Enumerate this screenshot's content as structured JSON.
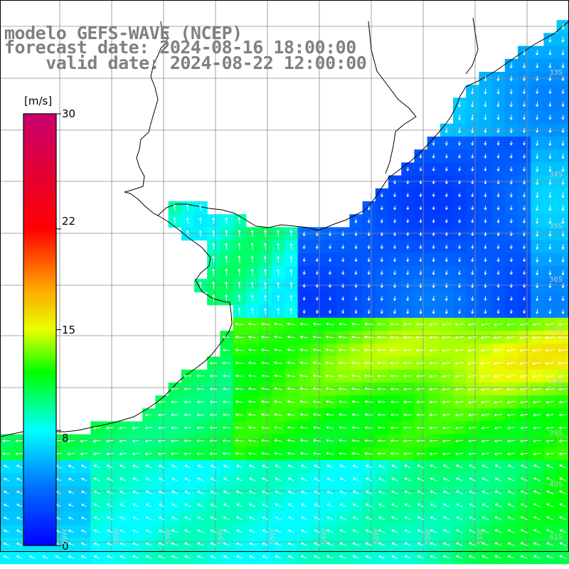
{
  "title": {
    "line1": "modelo GEFS-WAVE (NCEP)",
    "line2": "forecast date: 2024-08-16 18:00:00",
    "line3": "    valid date: 2024-08-22 12:00:00"
  },
  "colorbar": {
    "unit": "[m/s]",
    "ticks": [
      {
        "label": "30",
        "value": 30
      },
      {
        "label": "22",
        "value": 22
      },
      {
        "label": "15",
        "value": 15
      },
      {
        "label": "8",
        "value": 8
      },
      {
        "label": "0",
        "value": 0
      }
    ],
    "colors": [
      "#0000ff",
      "#00aaff",
      "#00ffff",
      "#00ff00",
      "#ffff00",
      "#ff8000",
      "#ff0000",
      "#cc0066"
    ]
  },
  "grid_labels": {
    "lat": [
      "33S",
      "34S",
      "35S",
      "36S",
      "37S",
      "38S",
      "39S",
      "40S",
      "41S"
    ],
    "lon": [
      "59W",
      "58W",
      "57W",
      "56W",
      "55W",
      "54W",
      "53W",
      "52W",
      "51W"
    ]
  },
  "chart_data": {
    "type": "heatmap",
    "variable": "wind speed",
    "units": "m/s",
    "scale": [
      0,
      30
    ],
    "regions": [
      {
        "area": "offshore north of 37S",
        "speed_range": [
          3,
          5
        ],
        "direction": "south"
      },
      {
        "area": "inner estuary / coastal shelf",
        "speed_range": [
          8,
          11
        ],
        "direction": "north"
      },
      {
        "area": "open ocean 37S-39S",
        "speed_range": [
          12,
          16
        ],
        "direction": "west"
      },
      {
        "area": "southern coastal zone 40S-41S",
        "speed_range": [
          8,
          10
        ],
        "direction": "northwest"
      }
    ]
  }
}
